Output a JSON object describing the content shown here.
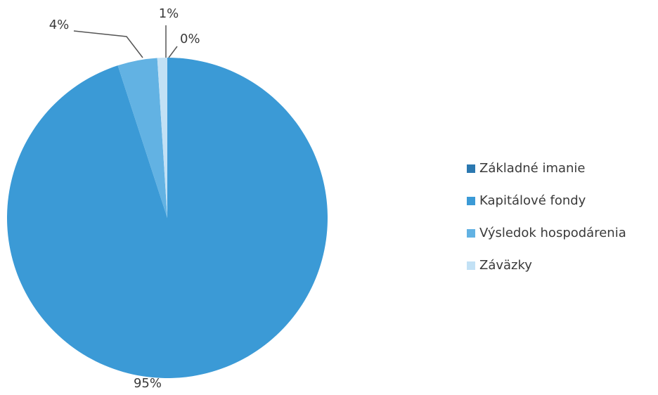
{
  "chart_data": {
    "type": "pie",
    "categories": [
      "Základné imanie",
      "Kapitálové fondy",
      "Výsledok hospodárenia",
      "Záväzky"
    ],
    "values": [
      0,
      95,
      4,
      1
    ],
    "value_labels": [
      "0%",
      "95%",
      "4%",
      "1%"
    ],
    "colors": [
      "#2b78b0",
      "#3b9ad6",
      "#62b2e3",
      "#c2e1f5"
    ]
  }
}
